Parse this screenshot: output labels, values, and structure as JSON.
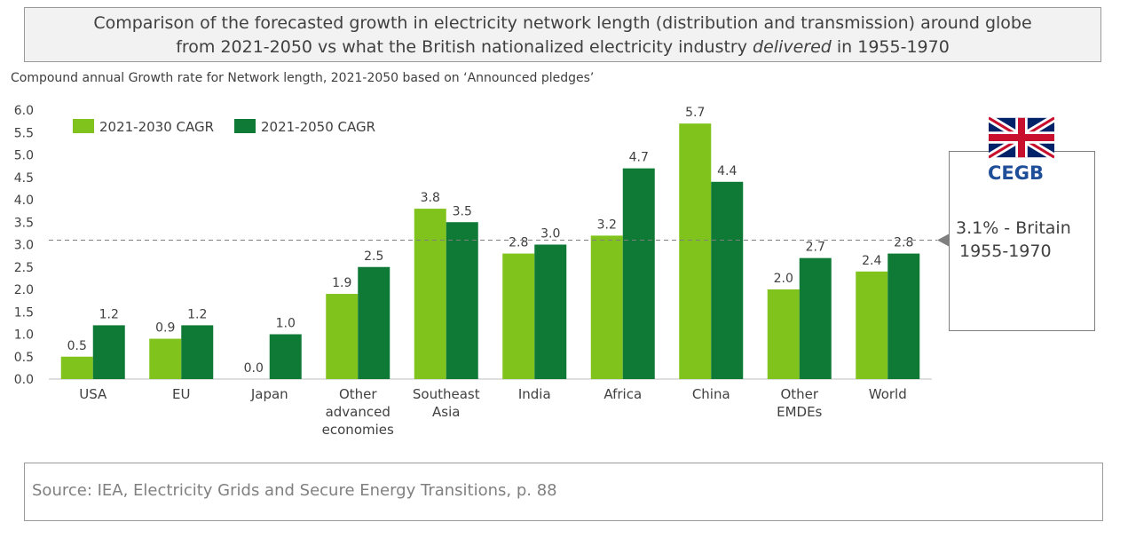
{
  "title": {
    "line1": "Comparison of the forecasted growth in electricity network length (distribution and transmission) around globe",
    "line2_pre": "from 2021-2050 vs what the British nationalized electricity industry ",
    "line2_em": "delivered",
    "line2_post": " in 1955-1970"
  },
  "subtitle": "Compound annual Growth rate for Network length, 2021-2050 based on ‘Announced pledges’",
  "reference": {
    "line1": "3.1% - Britain",
    "line2": "1955-1970",
    "logo_text": "CEGB"
  },
  "source": "Source: IEA, Electricity Grids and Secure Energy Transitions, p. 88",
  "chart_data": {
    "type": "bar",
    "categories": [
      [
        "USA"
      ],
      [
        "EU"
      ],
      [
        "Japan"
      ],
      [
        "Other",
        "advanced",
        "economies"
      ],
      [
        "Southeast",
        "Asia"
      ],
      [
        "India"
      ],
      [
        "Africa"
      ],
      [
        "China"
      ],
      [
        "Other",
        "EMDEs"
      ],
      [
        "World"
      ]
    ],
    "series": [
      {
        "name": "2021-2030 CAGR",
        "color": "#80c31c",
        "values": [
          0.5,
          0.9,
          0.0,
          1.9,
          3.8,
          2.8,
          3.2,
          5.7,
          2.0,
          2.4
        ]
      },
      {
        "name": "2021-2050 CAGR",
        "color": "#0e7a36",
        "values": [
          1.2,
          1.2,
          1.0,
          2.5,
          3.5,
          3.0,
          4.7,
          4.4,
          2.7,
          2.8
        ]
      }
    ],
    "ylim": [
      0,
      6.0
    ],
    "yticks": [
      "0.0",
      "0.5",
      "1.0",
      "1.5",
      "2.0",
      "2.5",
      "3.0",
      "3.5",
      "4.0",
      "4.5",
      "5.0",
      "5.5",
      "6.0"
    ],
    "reference_line": 3.1,
    "legend": "top-left",
    "grid": false
  }
}
